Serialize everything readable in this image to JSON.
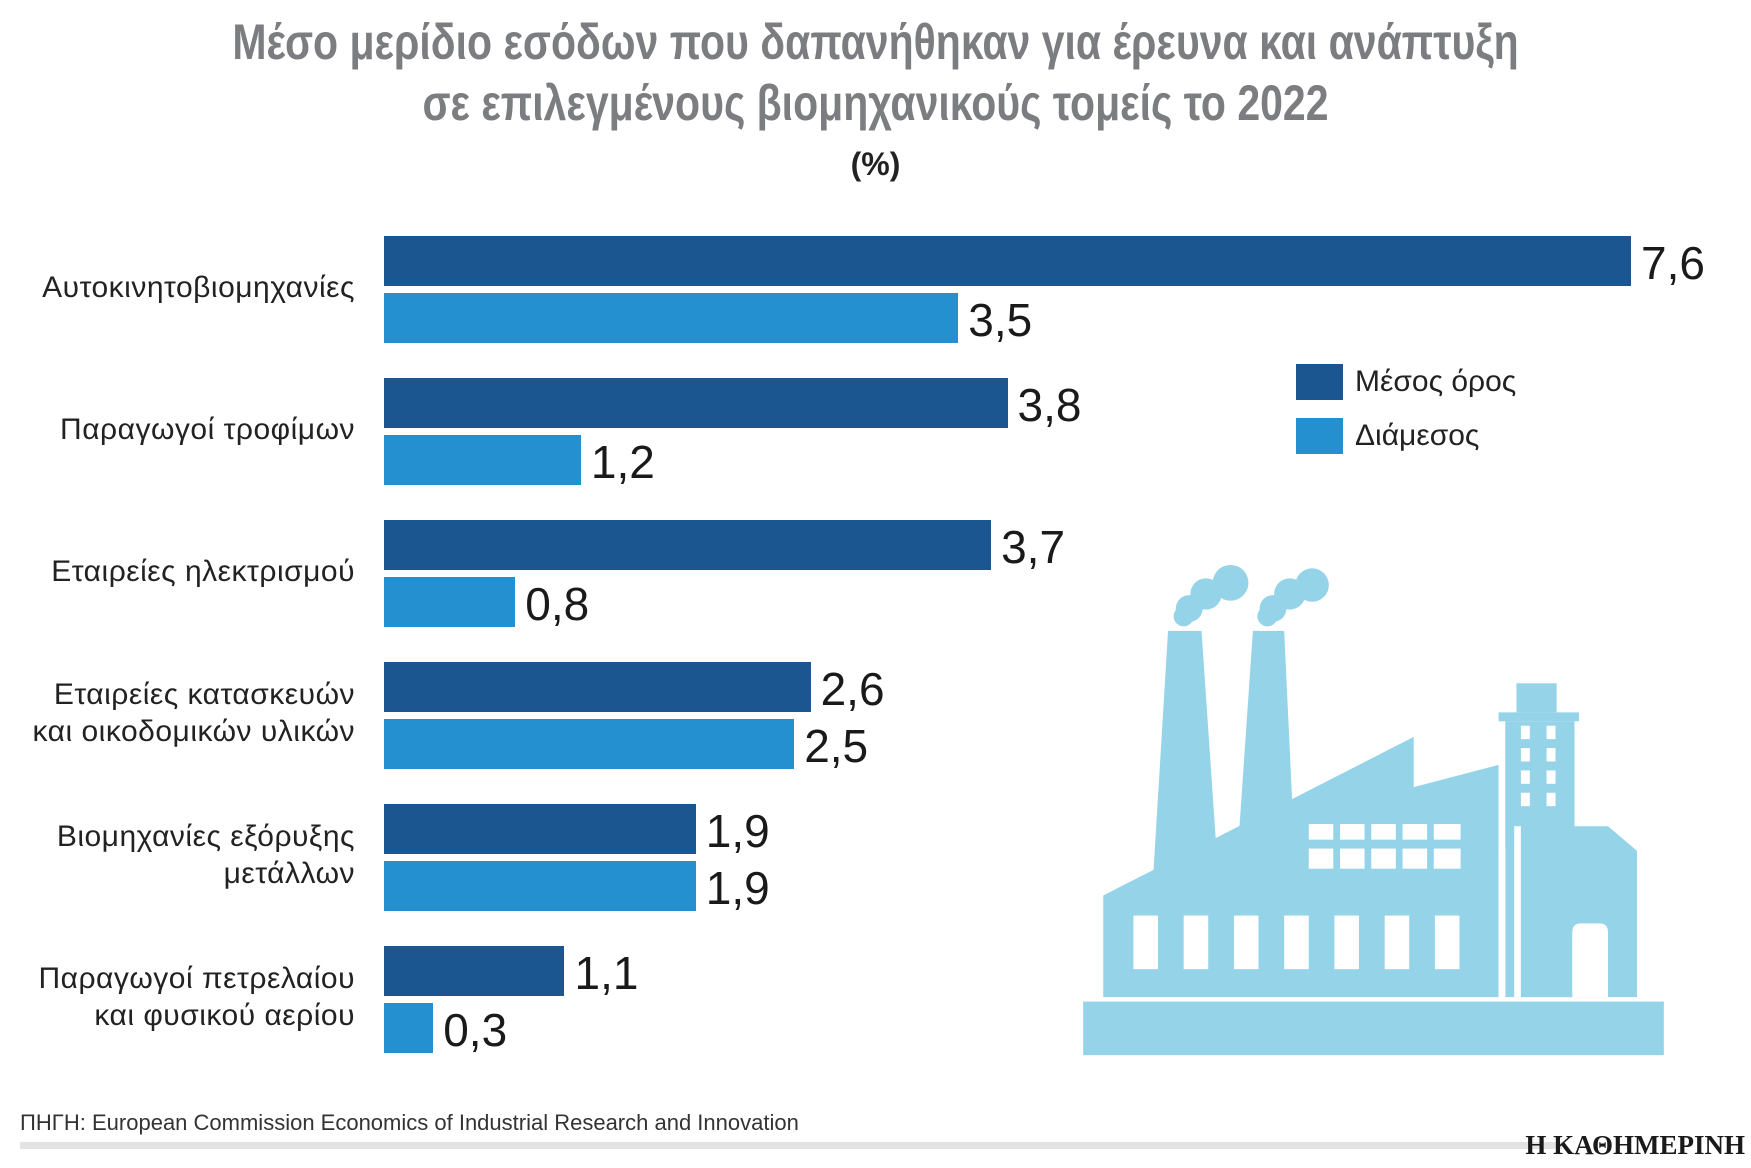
{
  "title_line1": "Μέσο μερίδιο εσόδων που δαπανήθηκαν για έρευνα και ανάπτυξη",
  "title_line2": "σε επιλεγμένους βιομηχανικούς τομείς το 2022",
  "unit": "(%)",
  "source": "ΠΗΓΗ: European Commission Economics of Industrial Research and Innovation",
  "logo": "Η ΚΑΘΗΜΕΡΙΝΗ",
  "colors": {
    "mean": "#1b5690",
    "median": "#2490d0",
    "factory": "#95d3e8"
  },
  "chart_data": {
    "type": "bar",
    "orientation": "horizontal",
    "categories": [
      [
        "Αυτοκινητοβιομηχανίες"
      ],
      [
        "Παραγωγοί τροφίμων"
      ],
      [
        "Εταιρείες ηλεκτρισμού"
      ],
      [
        "Εταιρείες κατασκευών",
        "και οικοδομικών υλικών"
      ],
      [
        "Βιομηχανίες εξόρυξης",
        "μετάλλων"
      ],
      [
        "Παραγωγοί πετρελαίου",
        "και φυσικού αερίου"
      ]
    ],
    "series": [
      {
        "name": "Μέσος όρος",
        "values": [
          7.6,
          3.8,
          3.7,
          2.6,
          1.9,
          1.1
        ],
        "labels": [
          "7,6",
          "3,8",
          "3,7",
          "2,6",
          "1,9",
          "1,1"
        ]
      },
      {
        "name": "Διάμεσος",
        "values": [
          3.5,
          1.2,
          0.8,
          2.5,
          1.9,
          0.3
        ],
        "labels": [
          "3,5",
          "1,2",
          "0,8",
          "2,5",
          "1,9",
          "0,3"
        ]
      }
    ],
    "xlim": [
      0,
      7.6
    ],
    "grid": false,
    "legend": "right"
  }
}
